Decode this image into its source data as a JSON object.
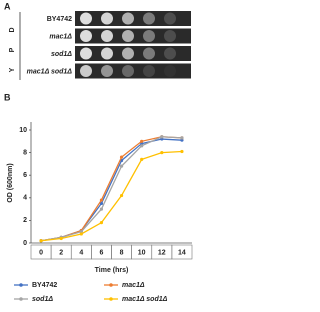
{
  "panel_a": {
    "label": "A",
    "medium": [
      "Y",
      "P",
      "D"
    ],
    "strains": [
      "BY4742",
      "mac1Δ",
      "sod1Δ",
      "mac1Δ sod1Δ"
    ]
  },
  "chart_data": {
    "type": "line",
    "label": "B",
    "x_label": "Time (hrs)",
    "y_label": "OD (600nm)",
    "x": [
      0,
      2,
      4,
      6,
      8,
      10,
      12,
      14
    ],
    "series": [
      {
        "name": "BY4742",
        "color": "#4472c4",
        "values": [
          0.2,
          0.5,
          1.1,
          3.5,
          7.3,
          8.8,
          9.2,
          9.1
        ]
      },
      {
        "name": "mac1Δ",
        "color": "#ed7d31",
        "values": [
          0.2,
          0.5,
          1.1,
          3.8,
          7.6,
          9.0,
          9.4,
          9.3
        ]
      },
      {
        "name": "sod1Δ",
        "color": "#a5a5a5",
        "values": [
          0.2,
          0.5,
          1.0,
          3.0,
          6.8,
          8.6,
          9.4,
          9.3
        ]
      },
      {
        "name": "mac1Δ sod1Δ",
        "color": "#ffc000",
        "values": [
          0.2,
          0.4,
          0.8,
          1.8,
          4.2,
          7.4,
          8.0,
          8.1
        ]
      }
    ],
    "xlim": [
      -1,
      15
    ],
    "xticks": [
      0,
      2,
      4,
      6,
      8,
      10,
      12,
      14
    ],
    "ylim": [
      0,
      10
    ],
    "yticks": [
      0,
      2,
      4,
      6,
      8,
      10
    ],
    "grid": false
  }
}
